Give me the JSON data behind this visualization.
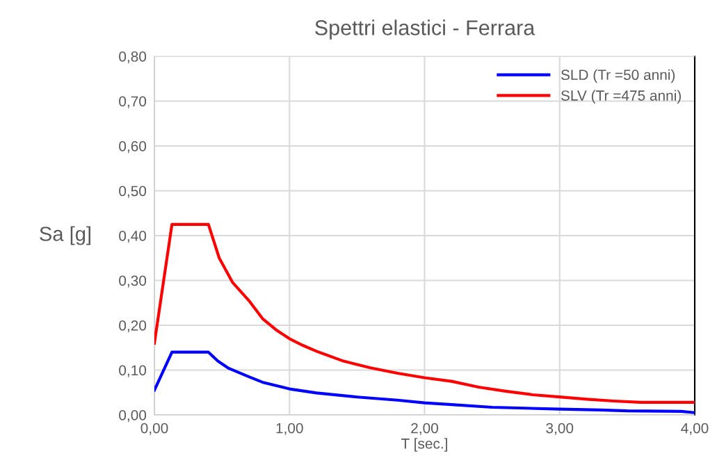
{
  "chart_data": {
    "type": "line",
    "title": "Spettri elastici - Ferrara",
    "xlabel": "T [sec.]",
    "ylabel": "Sa [g]",
    "xlim": [
      0,
      4
    ],
    "ylim": [
      0,
      0.8
    ],
    "xticks": [
      {
        "value": 0,
        "label": "0,00"
      },
      {
        "value": 1,
        "label": "1,00"
      },
      {
        "value": 2,
        "label": "2,00"
      },
      {
        "value": 3,
        "label": "3,00"
      },
      {
        "value": 4,
        "label": "4,00"
      }
    ],
    "yticks": [
      {
        "value": 0,
        "label": "0,00"
      },
      {
        "value": 0.1,
        "label": "0,10"
      },
      {
        "value": 0.2,
        "label": "0,20"
      },
      {
        "value": 0.3,
        "label": "0,30"
      },
      {
        "value": 0.4,
        "label": "0,40"
      },
      {
        "value": 0.5,
        "label": "0,50"
      },
      {
        "value": 0.6,
        "label": "0,60"
      },
      {
        "value": 0.7,
        "label": "0,70"
      },
      {
        "value": 0.8,
        "label": "0,80"
      }
    ],
    "grid": true,
    "legend": "top right",
    "marker": "none",
    "line_style": "solid",
    "series": [
      {
        "name": "SLD (Tr =50 anni)",
        "color": "#0000ff",
        "x": [
          0,
          0.13,
          0.4,
          0.47,
          0.55,
          0.7,
          0.8,
          1.0,
          1.2,
          1.5,
          1.8,
          2.0,
          2.2,
          2.5,
          3.0,
          3.3,
          3.5,
          3.9,
          4.0
        ],
        "values": [
          0.055,
          0.14,
          0.14,
          0.12,
          0.104,
          0.085,
          0.073,
          0.058,
          0.049,
          0.04,
          0.033,
          0.027,
          0.023,
          0.017,
          0.013,
          0.011,
          0.009,
          0.008,
          0.005
        ]
      },
      {
        "name": "SLV (Tr =475 anni)",
        "color": "#ff0000",
        "x": [
          0,
          0.13,
          0.4,
          0.48,
          0.58,
          0.7,
          0.8,
          0.9,
          1.0,
          1.1,
          1.2,
          1.4,
          1.6,
          1.8,
          2.0,
          2.2,
          2.4,
          2.6,
          2.8,
          3.0,
          3.2,
          3.4,
          3.6,
          4.0
        ],
        "values": [
          0.16,
          0.425,
          0.425,
          0.35,
          0.295,
          0.255,
          0.215,
          0.19,
          0.17,
          0.155,
          0.142,
          0.12,
          0.105,
          0.093,
          0.083,
          0.075,
          0.062,
          0.053,
          0.045,
          0.04,
          0.035,
          0.031,
          0.028,
          0.028
        ]
      }
    ]
  }
}
